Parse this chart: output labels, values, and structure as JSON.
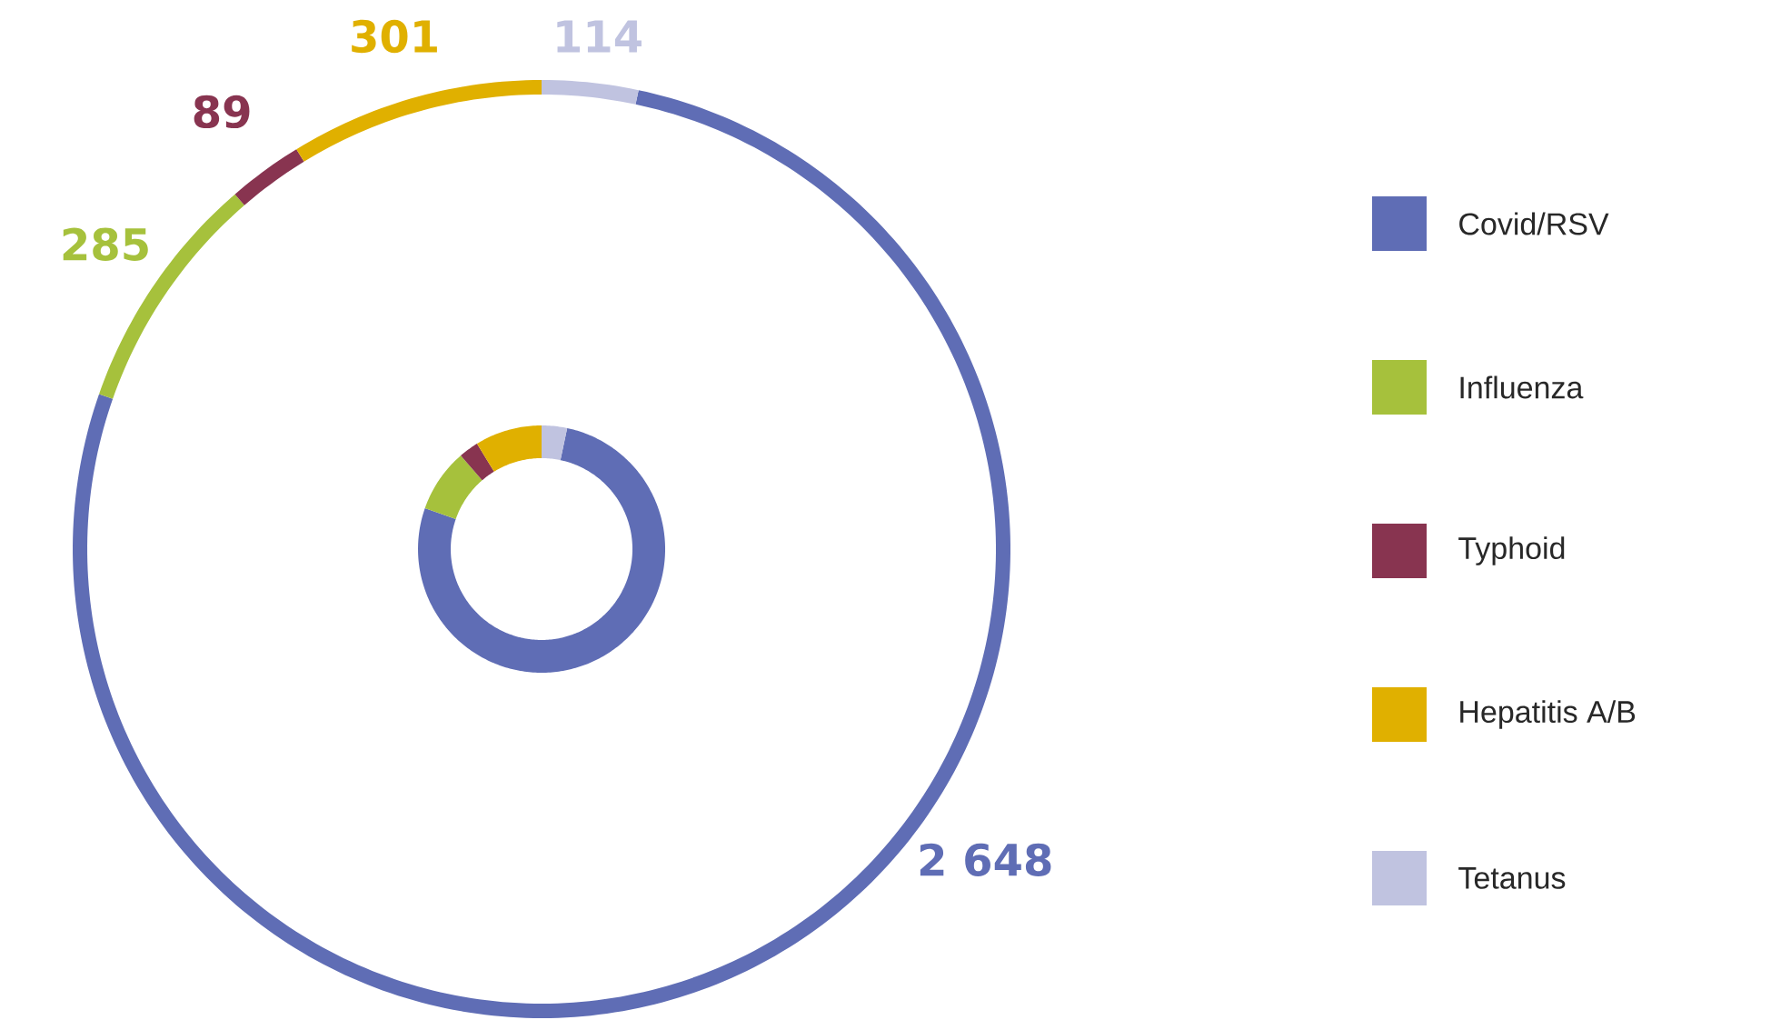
{
  "chart_data": [
    {
      "type": "donut",
      "categories": [
        "Covid/RSV",
        "Influenza",
        "Typhoid",
        "Hepatitis A/B",
        "Tetanus"
      ],
      "colors": [
        "#5f6db5",
        "#a6c13c",
        "#883450",
        "#e0b000",
        "#c0c3e0"
      ],
      "values": [
        2648,
        285,
        89,
        301,
        114
      ],
      "value_labels": [
        "2 648",
        "285",
        "89",
        "301",
        "114"
      ],
      "legend": "right"
    },
    {
      "type": "donut",
      "categories": [
        null,
        null,
        null,
        null,
        null
      ],
      "colors": [
        "#5f6db5",
        "#a6c13c",
        "#883450",
        "#e0b000",
        "#c0c3e0"
      ],
      "values": [
        77.04,
        8.29,
        2.59,
        8.76,
        3.32
      ]
    }
  ]
}
